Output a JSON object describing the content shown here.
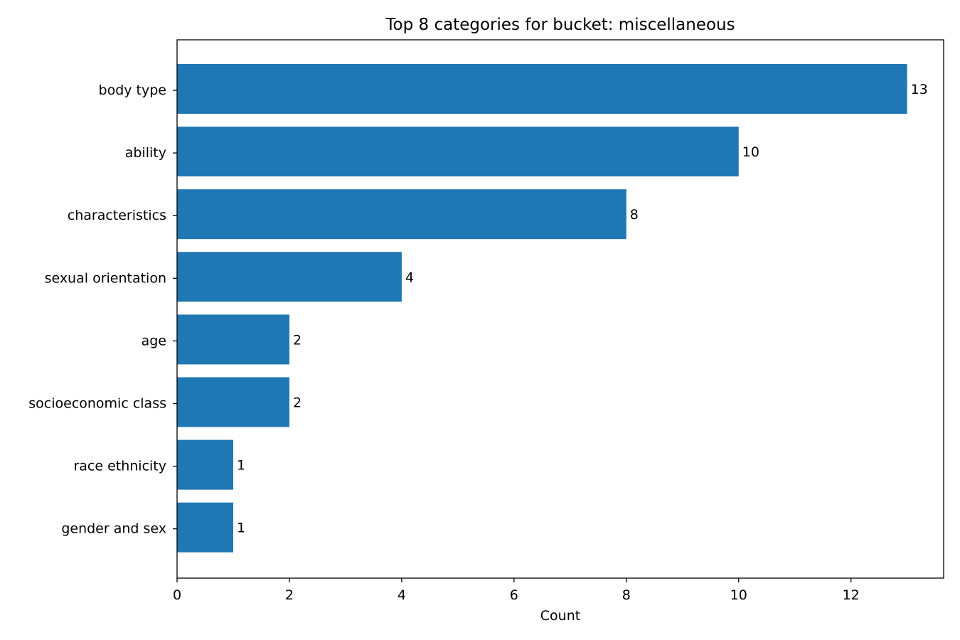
{
  "chart_data": {
    "type": "bar",
    "orientation": "horizontal",
    "title": "Top 8 categories for bucket: miscellaneous",
    "xlabel": "Count",
    "ylabel": "",
    "categories": [
      "body type",
      "ability",
      "characteristics",
      "sexual orientation",
      "age",
      "socioeconomic class",
      "race ethnicity",
      "gender and sex"
    ],
    "values": [
      13,
      10,
      8,
      4,
      2,
      2,
      1,
      1
    ],
    "data_labels": [
      "13",
      "10",
      "8",
      "4",
      "2",
      "2",
      "1",
      "1"
    ],
    "xlim": [
      0,
      13.65
    ],
    "xticks": [
      0,
      2,
      4,
      6,
      8,
      10,
      12
    ],
    "xtick_labels": [
      "0",
      "2",
      "4",
      "6",
      "8",
      "10",
      "12"
    ],
    "bar_color": "#1f77b4",
    "grid": false,
    "legend": false
  }
}
